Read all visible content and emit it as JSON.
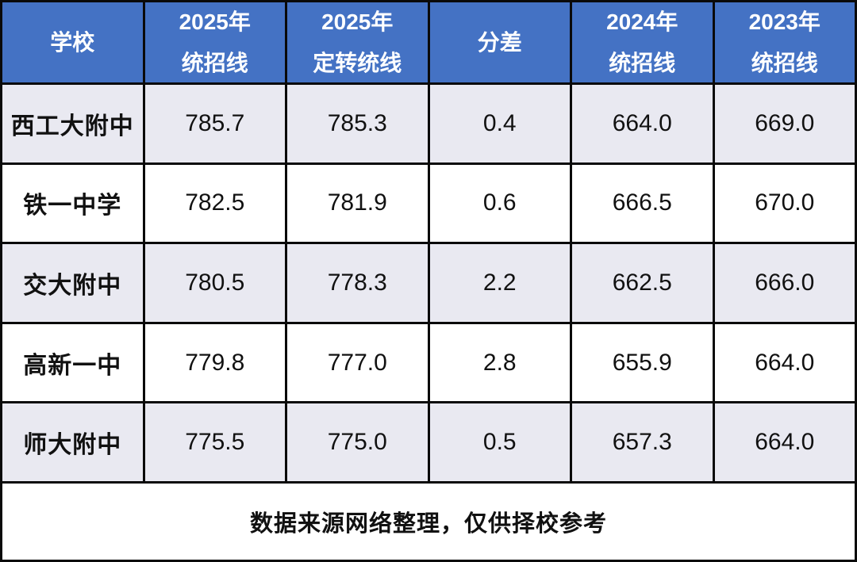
{
  "colors": {
    "header_bg": "#4472C4",
    "header_text": "#FFFFFF",
    "row_alt_bg": "#E9E9F1",
    "row_bg": "#FFFFFF",
    "border": "#0A0A0A",
    "text": "#111111"
  },
  "table": {
    "headers": [
      [
        "学校"
      ],
      [
        "2025年",
        "统招线"
      ],
      [
        "2025年",
        "定转统线"
      ],
      [
        "分差"
      ],
      [
        "2024年",
        "统招线"
      ],
      [
        "2023年",
        "统招线"
      ]
    ],
    "rows": [
      [
        "西工大附中",
        "785.7",
        "785.3",
        "0.4",
        "664.0",
        "669.0"
      ],
      [
        "铁一中学",
        "782.5",
        "781.9",
        "0.6",
        "666.5",
        "670.0"
      ],
      [
        "交大附中",
        "780.5",
        "778.3",
        "2.2",
        "662.5",
        "666.0"
      ],
      [
        "高新一中",
        "779.8",
        "777.0",
        "2.8",
        "655.9",
        "664.0"
      ],
      [
        "师大附中",
        "775.5",
        "775.0",
        "0.5",
        "657.3",
        "664.0"
      ]
    ],
    "footer": "数据来源网络整理，仅供择校参考"
  },
  "chart_data": {
    "type": "table",
    "columns": [
      "学校",
      "2025年统招线",
      "2025年定转统线",
      "分差",
      "2024年统招线",
      "2023年统招线"
    ],
    "rows": [
      {
        "学校": "西工大附中",
        "2025年统招线": 785.7,
        "2025年定转统线": 785.3,
        "分差": 0.4,
        "2024年统招线": 664.0,
        "2023年统招线": 669.0
      },
      {
        "学校": "铁一中学",
        "2025年统招线": 782.5,
        "2025年定转统线": 781.9,
        "分差": 0.6,
        "2024年统招线": 666.5,
        "2023年统招线": 670.0
      },
      {
        "学校": "交大附中",
        "2025年统招线": 780.5,
        "2025年定转统线": 778.3,
        "分差": 2.2,
        "2024年统招线": 662.5,
        "2023年统招线": 666.0
      },
      {
        "学校": "高新一中",
        "2025年统招线": 779.8,
        "2025年定转统线": 777.0,
        "分差": 2.8,
        "2024年统招线": 655.9,
        "2023年统招线": 664.0
      },
      {
        "学校": "师大附中",
        "2025年统招线": 775.5,
        "2025年定转统线": 775.0,
        "分差": 0.5,
        "2024年统招线": 657.3,
        "2023年统招线": 664.0
      }
    ],
    "footnote": "数据来源网络整理，仅供择校参考"
  }
}
